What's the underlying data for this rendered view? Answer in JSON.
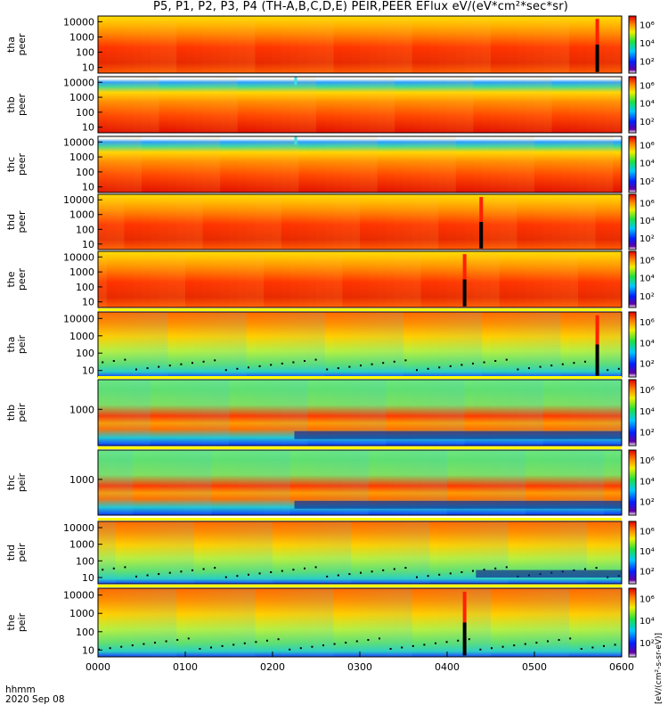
{
  "chart_data": {
    "type": "heatmap",
    "title": "P5, P1, P2, P3, P4 (TH-A,B,C,D,E) PEIR,PEER EFlux eV/(eV*cm²*sec*sr)",
    "time_label_1": "hhmm",
    "time_label_2": "2020 Sep 08",
    "x_ticks": [
      "0000",
      "0100",
      "0200",
      "0300",
      "0400",
      "0500",
      "0600"
    ],
    "colorbar_label": "[eV/(cm²-s-sr-eV)]",
    "colorbar_ticks": [
      "10⁶",
      "10⁴",
      "10²"
    ],
    "panels": [
      {
        "probe": "tha",
        "ylabel": [
          "tha",
          "peer"
        ],
        "y_ticks": [
          "10000",
          "1000",
          "100",
          "10"
        ],
        "spike_hour": 5.7
      },
      {
        "probe": "thb",
        "ylabel": [
          "thb",
          "peer"
        ],
        "y_ticks": [
          "10000",
          "1000",
          "100",
          "10"
        ],
        "gap_hour": 2.25
      },
      {
        "probe": "thc",
        "ylabel": [
          "thc",
          "peer"
        ],
        "y_ticks": [
          "10000",
          "1000",
          "100",
          "10"
        ],
        "gap_hour": 2.25
      },
      {
        "probe": "thd",
        "ylabel": [
          "thd",
          "peer"
        ],
        "y_ticks": [
          "10000",
          "1000",
          "100",
          "10"
        ],
        "spike_hour": 4.37
      },
      {
        "probe": "the",
        "ylabel": [
          "the",
          "peer"
        ],
        "y_ticks": [
          "10000",
          "1000",
          "100",
          "10"
        ],
        "spike_hour": 4.18
      },
      {
        "probe": "tha",
        "ylabel": [
          "tha",
          "peir"
        ],
        "y_ticks": [
          "10000",
          "1000",
          "100",
          "10"
        ],
        "spike_hour": 5.7
      },
      {
        "probe": "thb",
        "ylabel": [
          "thb",
          "peir"
        ],
        "y_ticks": [
          "1000"
        ],
        "change_hour": 2.25
      },
      {
        "probe": "thc",
        "ylabel": [
          "thc",
          "peir"
        ],
        "y_ticks": [
          "1000"
        ],
        "change_hour": 2.25
      },
      {
        "probe": "thd",
        "ylabel": [
          "thd",
          "peir"
        ],
        "y_ticks": [
          "10000",
          "1000",
          "100",
          "10"
        ],
        "change_hour": 4.33
      },
      {
        "probe": "the",
        "ylabel": [
          "the",
          "peir"
        ],
        "y_ticks": [
          "10000",
          "1000",
          "100",
          "10"
        ],
        "spike_hour": 4.18
      }
    ]
  }
}
